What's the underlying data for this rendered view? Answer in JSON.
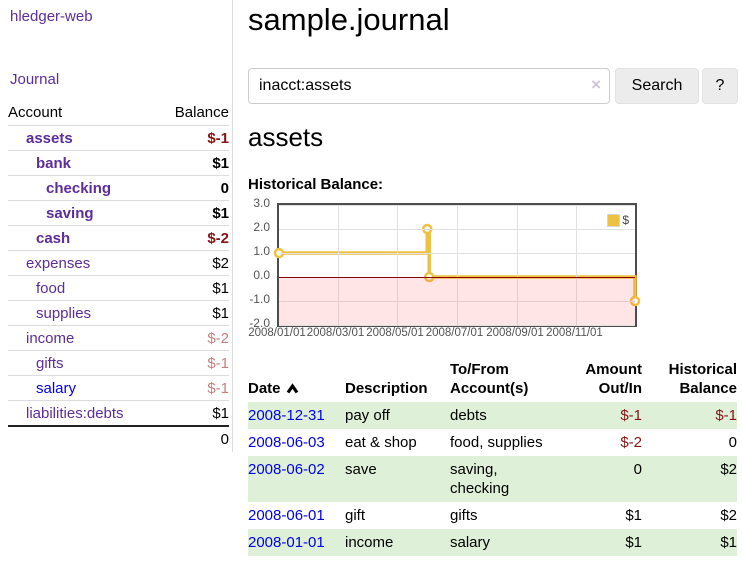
{
  "app": {
    "brand": "hledger-web",
    "nav_journal": "Journal"
  },
  "colors": {
    "purple": "#5c2d9b",
    "blue": "#0000ee",
    "darkred": "#871414",
    "rose": "#c4817e",
    "greenrow": "#dff0d8",
    "gold": "#edc240",
    "pink": "rgba(255,96,96,0.16)",
    "zeroline": "#8b0000",
    "grid": "#e0e0e0",
    "plotborder": "#4d4d4d",
    "tick": "#545454",
    "rowline": "#dddddd",
    "darkline": "#222222",
    "btnbg": "#ececec",
    "inputborder": "#cccccc",
    "clear": "#cdc5da"
  },
  "sidebar": {
    "headers": [
      "Account",
      "Balance"
    ],
    "rows": [
      {
        "name": "assets",
        "balance": "$-1",
        "indent": 1,
        "bold": true,
        "blue": false
      },
      {
        "name": "bank",
        "balance": "$1",
        "indent": 2,
        "bold": true,
        "blue": false
      },
      {
        "name": "checking",
        "balance": "0",
        "indent": 3,
        "bold": true,
        "blue": false
      },
      {
        "name": "saving",
        "balance": "$1",
        "indent": 3,
        "bold": true,
        "blue": false
      },
      {
        "name": "cash",
        "balance": "$-2",
        "indent": 2,
        "bold": true,
        "blue": false
      },
      {
        "name": "expenses",
        "balance": "$2",
        "indent": 1,
        "bold": false,
        "blue": false
      },
      {
        "name": "food",
        "balance": "$1",
        "indent": 2,
        "bold": false,
        "blue": false
      },
      {
        "name": "supplies",
        "balance": "$1",
        "indent": 2,
        "bold": false,
        "blue": false
      },
      {
        "name": "income",
        "balance": "$-2",
        "indent": 1,
        "bold": false,
        "blue": false
      },
      {
        "name": "gifts",
        "balance": "$-1",
        "indent": 2,
        "bold": false,
        "blue": false
      },
      {
        "name": "salary",
        "balance": "$-1",
        "indent": 2,
        "bold": false,
        "blue": true
      },
      {
        "name": "liabilities:debts",
        "balance": "$1",
        "indent": 1,
        "bold": false,
        "blue": false
      }
    ],
    "total": "0"
  },
  "header": {
    "title": "sample.journal"
  },
  "search": {
    "value": "inacct:assets",
    "clear_icon": "×",
    "button": "Search",
    "help": "?"
  },
  "account_page": {
    "heading": "assets",
    "chart_label": "Historical Balance:"
  },
  "chart_data": {
    "type": "line",
    "step": true,
    "title": "Historical Balance:",
    "series": [
      {
        "name": "$",
        "color": "#edc240",
        "points": [
          [
            "2008-01-01",
            1
          ],
          [
            "2008-06-01",
            2
          ],
          [
            "2008-06-03",
            0
          ],
          [
            "2008-12-31",
            -1
          ]
        ]
      }
    ],
    "xlim": [
      "2008-01-01",
      "2008-12-31"
    ],
    "ylim": [
      -2,
      3
    ],
    "yticks": [
      "3.0",
      "2.0",
      "1.0",
      "0.0",
      "-1.0",
      "-2.0"
    ],
    "xticks": [
      "2008/01/01",
      "2008/03/01",
      "2008/05/01",
      "2008/07/01",
      "2008/09/01",
      "2008/11/01"
    ],
    "grid": true,
    "legend_position": "top-right",
    "negative_region_fill": true
  },
  "register": {
    "headers": [
      {
        "l1": "Date"
      },
      {
        "l1": "Description"
      },
      {
        "l1": "To/From",
        "l2": "Account(s)"
      },
      {
        "l1": "Amount",
        "l2": "Out/In"
      },
      {
        "l1": "Historical",
        "l2": "Balance"
      }
    ],
    "rows": [
      {
        "date": "2008-12-31",
        "description": "pay off",
        "accounts": "debts",
        "amount": "$-1",
        "balance": "$-1"
      },
      {
        "date": "2008-06-03",
        "description": "eat & shop",
        "accounts": "food, supplies",
        "amount": "$-2",
        "balance": "0"
      },
      {
        "date": "2008-06-02",
        "description": "save",
        "accounts": "saving, checking",
        "amount": "0",
        "balance": "$2"
      },
      {
        "date": "2008-06-01",
        "description": "gift",
        "accounts": "gifts",
        "amount": "$1",
        "balance": "$2"
      },
      {
        "date": "2008-01-01",
        "description": "income",
        "accounts": "salary",
        "amount": "$1",
        "balance": "$1"
      }
    ]
  }
}
